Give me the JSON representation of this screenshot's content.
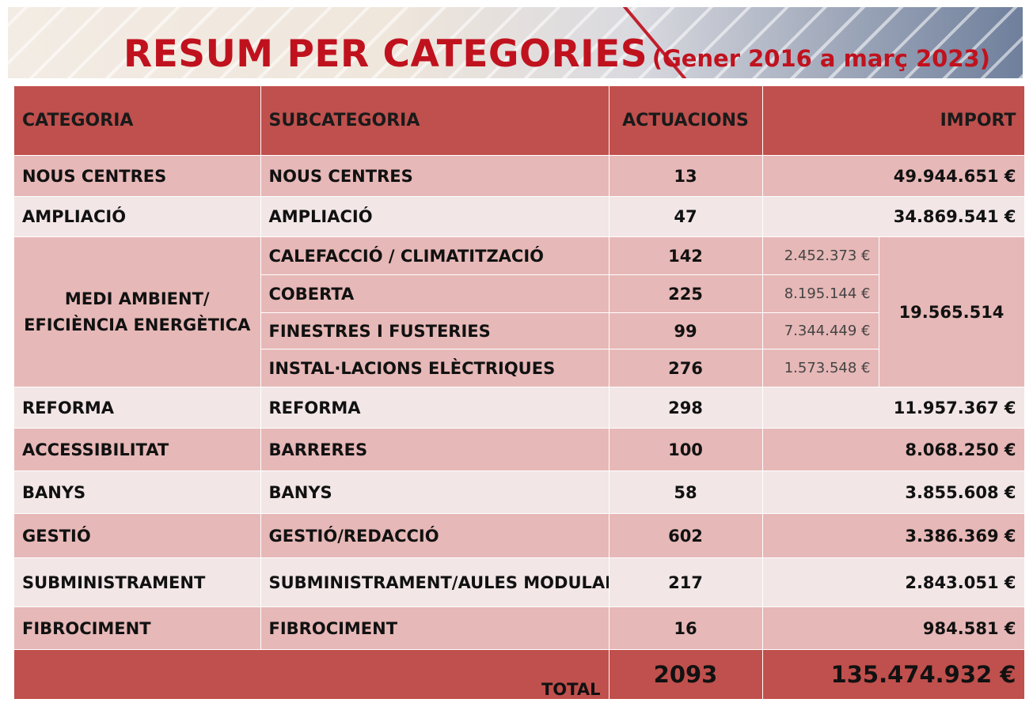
{
  "header": {
    "title": "RESUM PER CATEGORIES",
    "subtitle": "(Gener 2016 a març 2023)"
  },
  "table": {
    "columns": [
      "CATEGORIA",
      "SUBCATEGORIA",
      "ACTUACIONS",
      "IMPORT"
    ],
    "rows": [
      {
        "category": "NOUS CENTRES",
        "subcategory": "NOUS CENTRES",
        "actuacions": "13",
        "import": "49.944.651 €"
      },
      {
        "category": "AMPLIACIÓ",
        "subcategory": "AMPLIACIÓ",
        "actuacions": "47",
        "import": "34.869.541 €"
      }
    ],
    "group": {
      "category": "MEDI AMBIENT/ EFICIÈNCIA ENERGÈTICA",
      "import": "19.565.514",
      "items": [
        {
          "subcategory": "CALEFACCIÓ / CLIMATITZACIÓ",
          "actuacions": "142",
          "import": "2.452.373 €"
        },
        {
          "subcategory": "COBERTA",
          "actuacions": "225",
          "import": "8.195.144 €"
        },
        {
          "subcategory": "FINESTRES I FUSTERIES",
          "actuacions": "99",
          "import": "7.344.449 €"
        },
        {
          "subcategory": "INSTAL·LACIONS ELÈCTRIQUES",
          "actuacions": "276",
          "import": "1.573.548 €"
        }
      ]
    },
    "rows_after": [
      {
        "category": "REFORMA",
        "subcategory": "REFORMA",
        "actuacions": "298",
        "import": "11.957.367 €"
      },
      {
        "category": "ACCESSIBILITAT",
        "subcategory": "BARRERES",
        "actuacions": "100",
        "import": "8.068.250 €"
      },
      {
        "category": "BANYS",
        "subcategory": "BANYS",
        "actuacions": "58",
        "import": "3.855.608 €"
      },
      {
        "category": "GESTIÓ",
        "subcategory": "GESTIÓ/REDACCIÓ",
        "actuacions": "602",
        "import": "3.386.369 €"
      },
      {
        "category": "SUBMINISTRAMENT",
        "subcategory": "SUBMINISTRAMENT/AULES MODULARS",
        "actuacions": "217",
        "import": "2.843.051 €"
      },
      {
        "category": "FIBROCIMENT",
        "subcategory": "FIBROCIMENT",
        "actuacions": "16",
        "import": "984.581 €"
      }
    ],
    "total": {
      "label": "TOTAL",
      "actuacions": "2093",
      "import": "135.474.932 €"
    }
  },
  "colors": {
    "header_red": "#c0504d",
    "row_dark": "#e6b8b7",
    "row_light": "#f2e6e6",
    "title_red": "#c0121e"
  }
}
